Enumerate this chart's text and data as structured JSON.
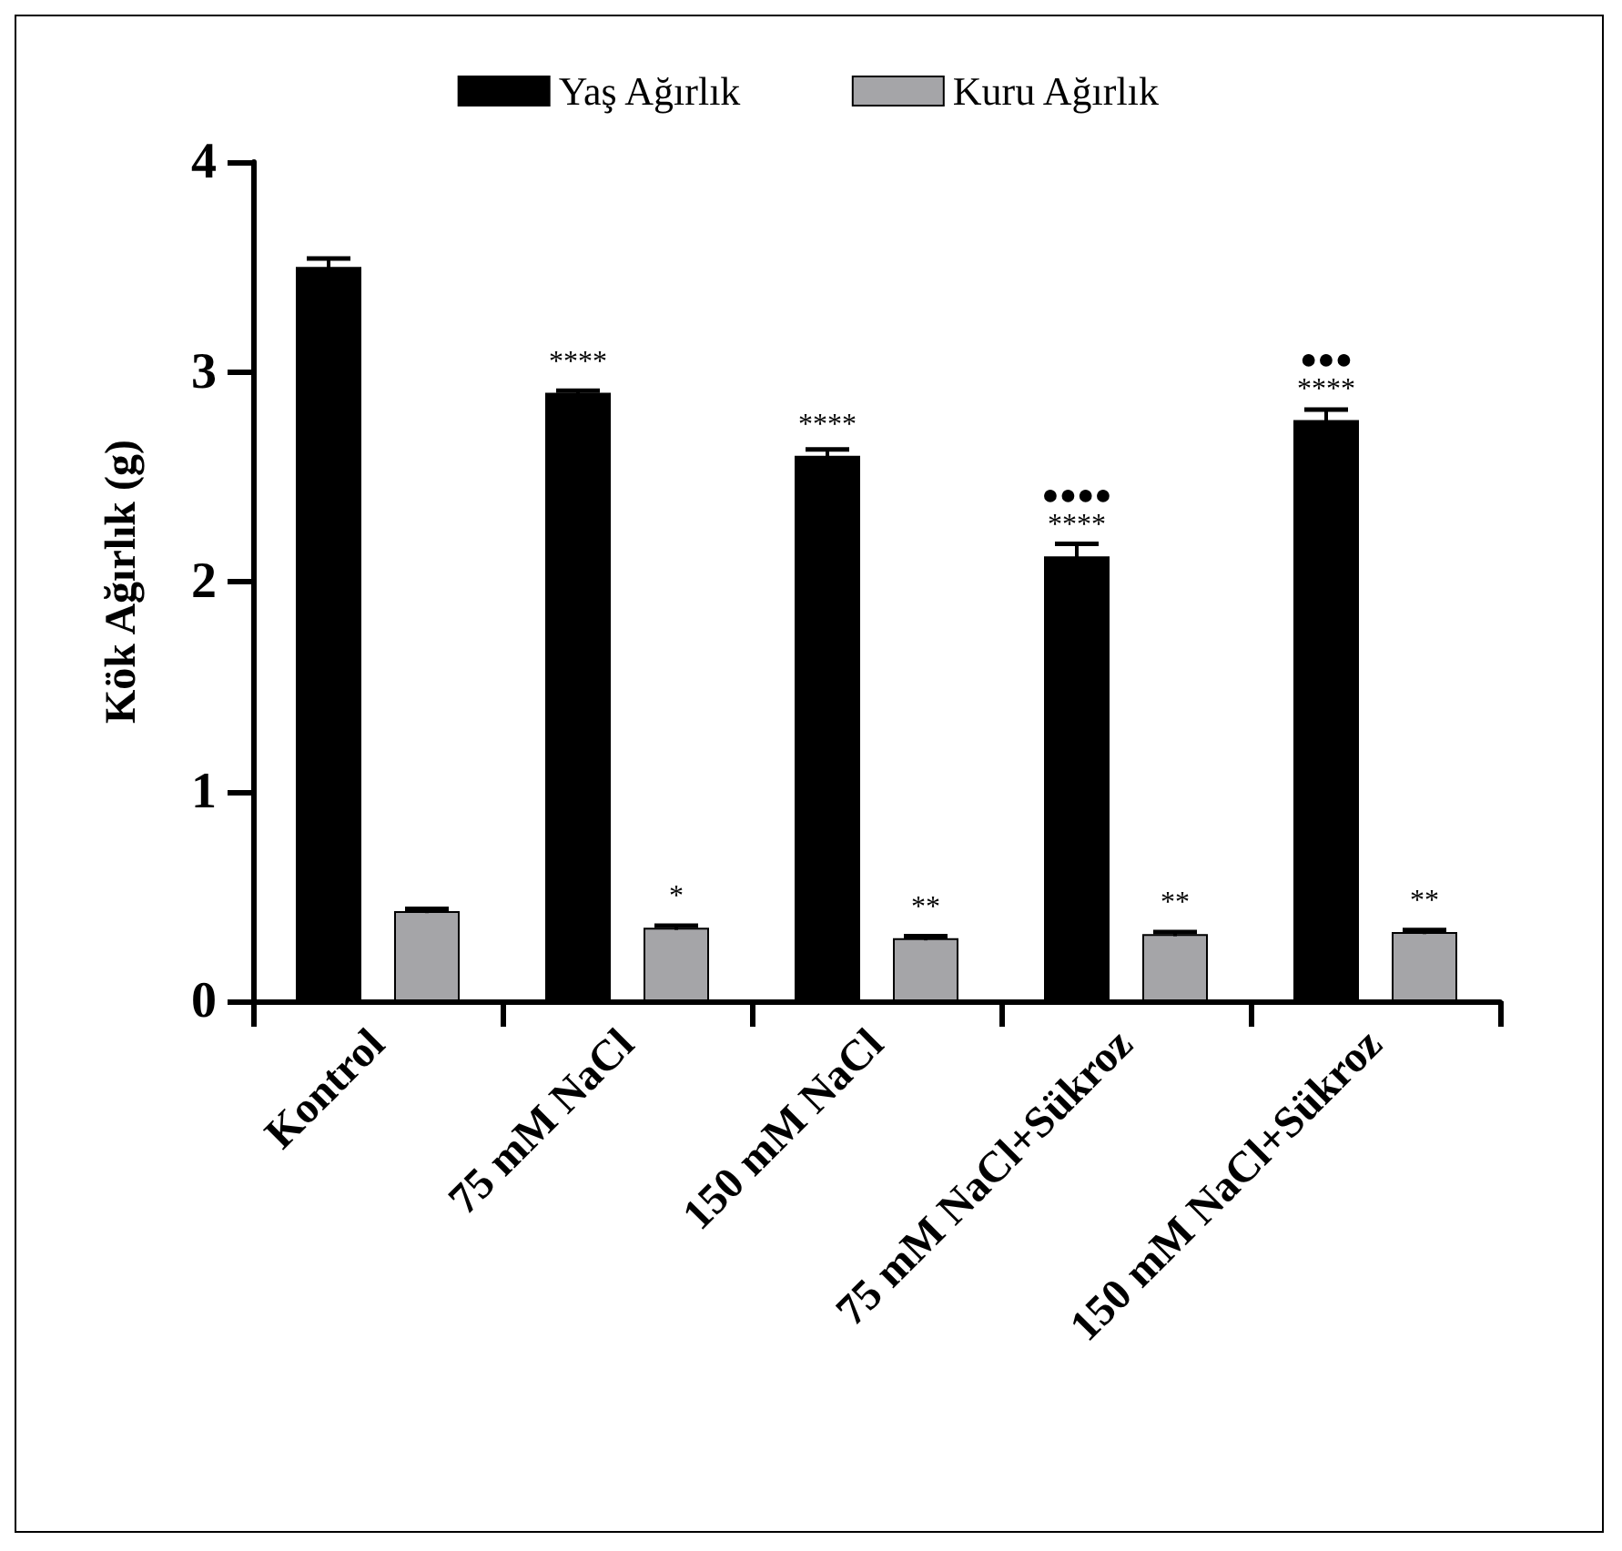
{
  "chart_data": {
    "type": "bar",
    "ylabel": "Kök Ağırlık (g)",
    "categories": [
      "Kontrol",
      "75 mM NaCl",
      "150 mM NaCl",
      "75 mM NaCl+Sükroz",
      "150 mM NaCl+Sükroz"
    ],
    "series": [
      {
        "name": "Yaş Ağırlık",
        "color": "#000000",
        "values": [
          3.5,
          2.9,
          2.6,
          2.12,
          2.77
        ],
        "errors": [
          0.04,
          0.01,
          0.03,
          0.06,
          0.05
        ],
        "value_labels": [
          null,
          "****",
          "****",
          "●●●●\n****",
          "●●●\n****"
        ]
      },
      {
        "name": "Kuru Ağırlık",
        "color": "#a5a5a8",
        "values": [
          0.43,
          0.35,
          0.3,
          0.32,
          0.33
        ],
        "errors": [
          0.01,
          0.01,
          0.01,
          0.01,
          0.01
        ],
        "value_labels": [
          null,
          "*",
          "**",
          "**",
          "**"
        ]
      }
    ],
    "ylim": [
      0,
      4
    ],
    "yticks": [
      0,
      1,
      2,
      3,
      4
    ],
    "grid": false,
    "legend": "top"
  }
}
